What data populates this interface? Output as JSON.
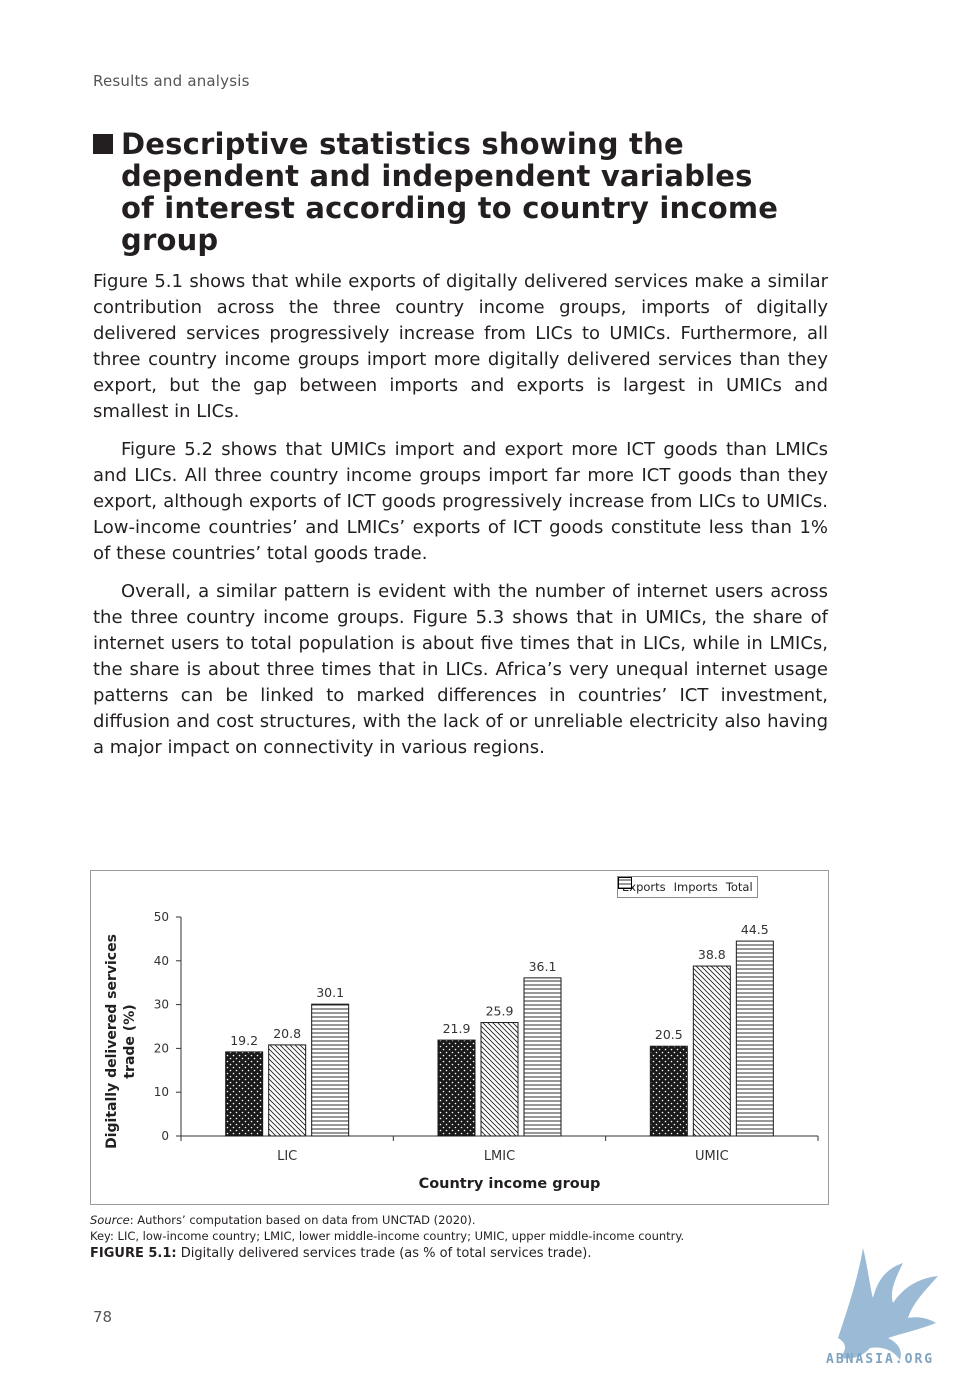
{
  "running_head": "Results and analysis",
  "heading": "Descriptive statistics showing the dependent and independent variables of interest according to country income group",
  "paragraphs": [
    "Figure 5.1 shows that while exports of digitally delivered services make a similar contribution across the three country income groups, imports of digitally delivered services progressively increase from LICs to UMICs. Furthermore, all three country income groups import more digitally delivered services than they export, but the gap between imports and exports is largest in UMICs and smallest in LICs.",
    "Figure 5.2 shows that UMICs import and export more ICT goods than LMICs and LICs. All three country income groups import far more ICT goods than they export, although exports of ICT goods progressively increase from LICs to UMICs. Low-income countries’ and LMICs’ exports of ICT goods constitute less than 1% of these countries’ total goods trade.",
    "Overall, a similar pattern is evident with the number of internet users across the three country income groups. Figure 5.3 shows that in UMICs, the share of internet users to total population is about five times that in LICs, while in LMICs, the share is about three times that in LICs. Africa’s very unequal internet usage patterns can be linked to marked differences in countries’ ICT investment, diffusion and cost structures, with the lack of or unreliable electricity also having a major impact on connectivity in various regions."
  ],
  "chart_data": {
    "type": "bar",
    "categories": [
      "LIC",
      "LMIC",
      "UMIC"
    ],
    "series": [
      {
        "name": "Exports",
        "values": [
          19.2,
          21.9,
          20.5
        ],
        "pattern": "dots-on-black"
      },
      {
        "name": "Imports",
        "values": [
          20.8,
          25.9,
          38.8
        ],
        "pattern": "diagonal-hatch"
      },
      {
        "name": "Total",
        "values": [
          30.1,
          36.1,
          44.5
        ],
        "pattern": "horizontal-lines"
      }
    ],
    "data_labels": [
      [
        "19.2",
        "20.8",
        "30.1"
      ],
      [
        "21.9",
        "25.9",
        "36.1"
      ],
      [
        "20.5",
        "38.8",
        "44.5"
      ]
    ],
    "xlabel": "Country income group",
    "ylabel_line1": "Digitally delivered services",
    "ylabel_line2": "trade (%)",
    "ylim": [
      0,
      50
    ],
    "yticks": [
      0,
      10,
      20,
      30,
      40,
      50
    ],
    "grid": false,
    "legend_position": "top-right"
  },
  "source_label": "Source",
  "source_text": ": Authors’ computation based on data from UNCTAD (2020).",
  "key_text": "Key: LIC, low-income country; LMIC, lower middle-income country; UMIC, upper middle-income country.",
  "caption_label": "FIGURE 5.1:",
  "caption_text": " Digitally delivered services trade (as % of total services trade).",
  "page_number": "78",
  "watermark_text": "ABNASIA.ORG"
}
